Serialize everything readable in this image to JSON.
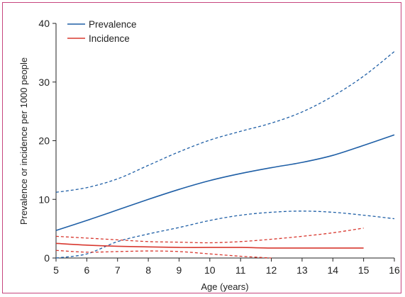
{
  "chart_data": {
    "type": "line",
    "title": "",
    "xlabel": "Age (years)",
    "ylabel": "Prevalence or incidence per 1000 people",
    "xlim": [
      5,
      16
    ],
    "ylim": [
      0,
      40
    ],
    "x_ticks": [
      5,
      6,
      7,
      8,
      9,
      10,
      11,
      12,
      13,
      14,
      15,
      16
    ],
    "y_ticks": [
      0,
      10,
      20,
      30,
      40
    ],
    "grid": false,
    "legend_position": "top-left",
    "legend": [
      {
        "label": "Prevalence",
        "color": "#1f5fa6"
      },
      {
        "label": "Incidence",
        "color": "#d8382f"
      }
    ],
    "series": [
      {
        "name": "Prevalence",
        "color": "#1f5fa6",
        "style": "solid",
        "x": [
          5,
          6,
          7,
          8,
          9,
          10,
          11,
          12,
          13,
          14,
          15,
          16
        ],
        "y": [
          4.7,
          6.4,
          8.2,
          10.0,
          11.7,
          13.2,
          14.4,
          15.4,
          16.3,
          17.5,
          19.2,
          21.0
        ]
      },
      {
        "name": "Prevalence upper CI",
        "color": "#1f5fa6",
        "style": "dashed",
        "x": [
          5,
          6,
          7,
          8,
          9,
          10,
          11,
          12,
          13,
          14,
          15,
          16
        ],
        "y": [
          11.2,
          12.0,
          13.5,
          15.8,
          18.1,
          20.1,
          21.6,
          23.0,
          24.9,
          27.6,
          31.0,
          35.2
        ]
      },
      {
        "name": "Prevalence lower CI",
        "color": "#1f5fa6",
        "style": "dashed",
        "x": [
          5,
          6,
          7,
          8,
          9,
          10,
          11,
          12,
          13,
          14,
          15,
          16
        ],
        "y": [
          0.0,
          0.7,
          2.8,
          4.1,
          5.2,
          6.4,
          7.3,
          7.8,
          8.0,
          7.8,
          7.3,
          6.7
        ]
      },
      {
        "name": "Incidence",
        "color": "#d8382f",
        "style": "solid",
        "x": [
          5,
          6,
          7,
          8,
          9,
          10,
          11,
          12,
          13,
          14,
          15
        ],
        "y": [
          2.5,
          2.2,
          2.0,
          1.9,
          1.8,
          1.8,
          1.8,
          1.7,
          1.7,
          1.7,
          1.7
        ]
      },
      {
        "name": "Incidence upper CI",
        "color": "#d8382f",
        "style": "dashed",
        "x": [
          5,
          6,
          7,
          8,
          9,
          10,
          11,
          12,
          13,
          14,
          15
        ],
        "y": [
          3.7,
          3.4,
          3.1,
          2.8,
          2.7,
          2.6,
          2.8,
          3.2,
          3.7,
          4.3,
          5.1
        ]
      },
      {
        "name": "Incidence lower CI",
        "color": "#d8382f",
        "style": "dashed",
        "x": [
          5,
          6,
          7,
          8,
          9,
          10,
          11,
          12
        ],
        "y": [
          1.3,
          1.0,
          1.1,
          1.2,
          1.1,
          0.7,
          0.3,
          0.0
        ]
      }
    ]
  }
}
